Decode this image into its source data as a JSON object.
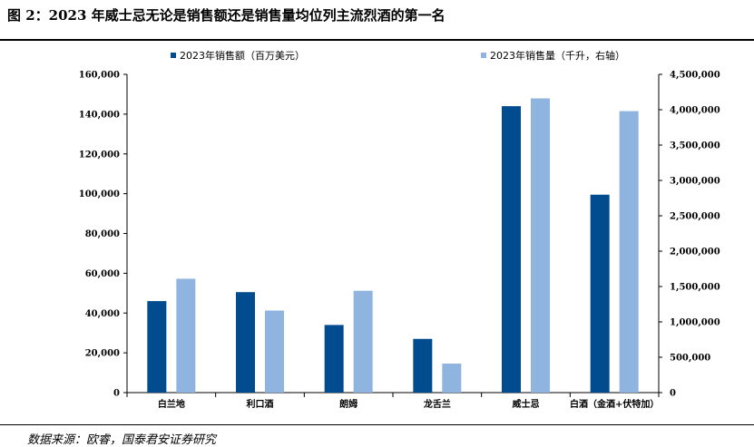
{
  "title": "图 2：2023 年威士忌无论是销售额还是销售量均位列主流烈酒的第一名",
  "source": "数据来源：欧睿，国泰君安证券研究",
  "chart_data": {
    "type": "bar",
    "categories": [
      "白兰地",
      "利口酒",
      "朗姆",
      "龙舌兰",
      "威士忌",
      "白酒（金酒+伏特加）"
    ],
    "series": [
      {
        "name": "2023年销售额（百万美元）",
        "axis": "left",
        "color": "#004c8f",
        "values": [
          46000,
          50500,
          34000,
          27000,
          144000,
          99500
        ]
      },
      {
        "name": "2023年销售量（千升，右轴）",
        "axis": "right",
        "color": "#8fb4e0",
        "values": [
          1610000,
          1160000,
          1440000,
          410000,
          4160000,
          3980000
        ]
      }
    ],
    "ylim_left": [
      0,
      160000
    ],
    "ylim_right": [
      0,
      4500000
    ],
    "yticks_left": [
      "0",
      "20,000",
      "40,000",
      "60,000",
      "80,000",
      "100,000",
      "120,000",
      "140,000",
      "160,000"
    ],
    "yticks_right": [
      "0",
      "500,000",
      "1,000,000",
      "1,500,000",
      "2,000,000",
      "2,500,000",
      "3,000,000",
      "3,500,000",
      "4,000,000",
      "4,500,000"
    ],
    "legend_position": "top",
    "grid": false
  }
}
